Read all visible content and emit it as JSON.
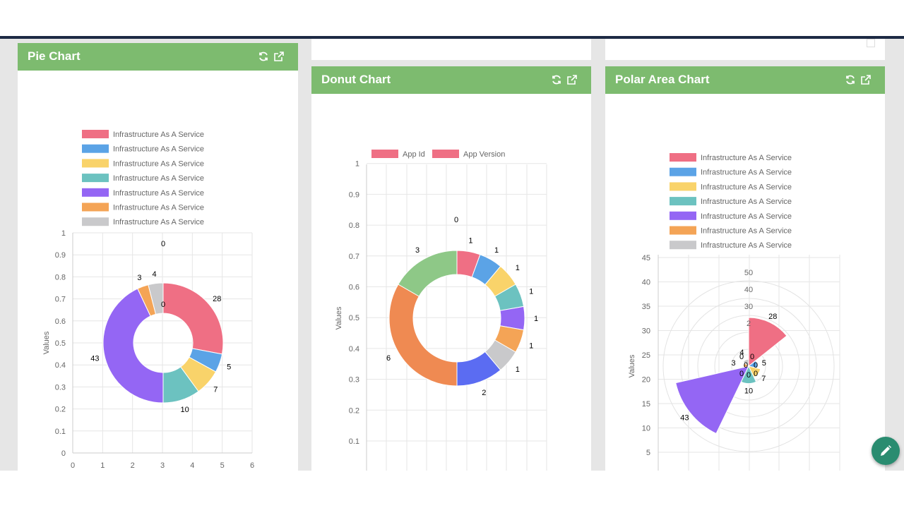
{
  "cards": {
    "pie": {
      "title": "Pie Chart"
    },
    "donut": {
      "title": "Donut Chart"
    },
    "polar": {
      "title": "Polar Area Chart"
    }
  },
  "icons": {
    "refresh": "refresh-icon",
    "open": "external-link-icon",
    "fab": "pencil-icon"
  },
  "colors": {
    "header_green": "#7dbb6f",
    "palette": [
      "#ef6f84",
      "#5ba3e6",
      "#f9d36a",
      "#6cc2c0",
      "#9466f4",
      "#f4a456",
      "#c9c9cb"
    ]
  },
  "chart_data": [
    {
      "type": "pie",
      "title": "Pie Chart",
      "legend": [
        "Infrastructure As A Service",
        "Infrastructure As A Service",
        "Infrastructure As A Service",
        "Infrastructure As A Service",
        "Infrastructure As A Service",
        "Infrastructure As A Service",
        "Infrastructure As A Service"
      ],
      "values": [
        28,
        5,
        7,
        10,
        43,
        3,
        4
      ],
      "extra_zero_labels": [
        "0",
        "0"
      ],
      "colors": [
        "#ef6f84",
        "#5ba3e6",
        "#f9d36a",
        "#6cc2c0",
        "#9466f4",
        "#f4a456",
        "#c9c9cb"
      ],
      "ylabel": "Values",
      "x_ticks": [
        "0",
        "1",
        "2",
        "3",
        "4",
        "5",
        "6"
      ],
      "y_ticks": [
        "0",
        "0.1",
        "0.2",
        "0.3",
        "0.4",
        "0.5",
        "0.6",
        "0.7",
        "0.8",
        "0.9",
        "1"
      ],
      "grid": true
    },
    {
      "type": "pie",
      "title": "Donut Chart",
      "legend": [
        "App Id",
        "App Version"
      ],
      "legend_colors": [
        "#ef6f84",
        "#ef6f84"
      ],
      "values": [
        1,
        1,
        1,
        1,
        1,
        1,
        1,
        2,
        6,
        3
      ],
      "extra_zero_labels": [
        "0"
      ],
      "colors": [
        "#ef6f84",
        "#5ba3e6",
        "#f9d36a",
        "#6cc2c0",
        "#9466f4",
        "#f4a456",
        "#c9c9cb",
        "#5b6cf2",
        "#ef8a52",
        "#8ec887"
      ],
      "ylabel": "Values",
      "y_ticks": [
        "0.1",
        "0.2",
        "0.3",
        "0.4",
        "0.5",
        "0.6",
        "0.7",
        "0.8",
        "0.9",
        "1"
      ],
      "grid": true
    },
    {
      "type": "polar",
      "title": "Polar Area Chart",
      "legend": [
        "Infrastructure As A Service",
        "Infrastructure As A Service",
        "Infrastructure As A Service",
        "Infrastructure As A Service",
        "Infrastructure As A Service",
        "Infrastructure As A Service",
        "Infrastructure As A Service"
      ],
      "values": [
        28,
        5,
        7,
        10,
        43,
        3,
        4
      ],
      "colors": [
        "#ef6f84",
        "#5ba3e6",
        "#f9d36a",
        "#6cc2c0",
        "#9466f4",
        "#f4a456",
        "#c9c9cb"
      ],
      "extra_zero_labels": [
        "0",
        "0",
        "0",
        "0",
        "0",
        "0",
        "0"
      ],
      "radial_ticks": [
        "2",
        "30",
        "40",
        "50"
      ],
      "ylabel": "Values",
      "y_ticks": [
        "5",
        "10",
        "15",
        "20",
        "25",
        "30",
        "35",
        "40",
        "45"
      ],
      "grid": true
    }
  ]
}
